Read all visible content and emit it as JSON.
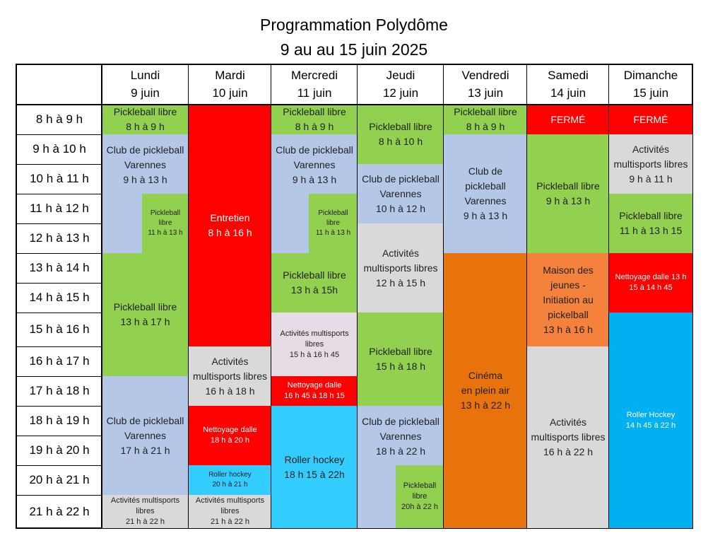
{
  "title": {
    "line1": "Programmation Polydôme",
    "line2": "9 au au 15 juin 2025"
  },
  "days": [
    {
      "name": "Lundi",
      "date": "9 juin"
    },
    {
      "name": "Mardi",
      "date": "10 juin"
    },
    {
      "name": "Mercredi",
      "date": "11 juin"
    },
    {
      "name": "Jeudi",
      "date": "12 juin"
    },
    {
      "name": "Vendredi",
      "date": "13 juin"
    },
    {
      "name": "Samedi",
      "date": "14 juin"
    },
    {
      "name": "Dimanche",
      "date": "15 juin"
    }
  ],
  "time_slots": [
    "8 h à 9 h",
    "9 h à 10 h",
    "10 h à 11 h",
    "11 h à 12 h",
    "12 h à 13 h",
    "13 h à 14 h",
    "14 h à 15 h",
    "15 h à 16 h",
    "16 h à 17 h",
    "17 h à 18 h",
    "18 h à 19 h",
    "19 h à 20 h",
    "20 h à 21 h",
    "21 h à 22 h"
  ],
  "colors": {
    "green": "#92d050",
    "blue": "#b4c7e7",
    "red": "#ff0000",
    "gray": "#d9d9d9",
    "lavender": "#e6dce6",
    "cyan": "#33ccff",
    "roller": "#00b0f0",
    "orange": "#e8730c",
    "salmon": "#f4823c"
  },
  "schedule": {
    "lundi": [
      {
        "lines": [
          "Pickleball libre",
          "8 h à 9 h"
        ]
      },
      {
        "lines": [
          "Club de pickleball",
          "Varennes",
          "9 h à 13 h"
        ]
      },
      {
        "lines": [
          "Pickleball",
          "libre",
          "11 h à 13 h"
        ]
      },
      {
        "lines": [
          "Pickleball libre",
          "13 h à 17 h"
        ]
      },
      {
        "lines": [
          "Club de pickleball",
          "Varennes",
          "17 h à 21 h"
        ]
      },
      {
        "lines": [
          "Activités multisports",
          "libres",
          "21 h à 22 h"
        ]
      }
    ],
    "mardi": [
      {
        "lines": [
          "Entretien",
          "8 h à 16 h"
        ]
      },
      {
        "lines": [
          "Activités",
          "multisports libres",
          "16 h à 18 h"
        ]
      },
      {
        "lines": [
          "Nettoyage dalle",
          "18 h à 20 h"
        ]
      },
      {
        "lines": [
          "Roller hockey",
          "20 h à 21  h"
        ]
      },
      {
        "lines": [
          "Activités multisports",
          "libres",
          "21 h à 22 h"
        ]
      }
    ],
    "mercredi": [
      {
        "lines": [
          "Pickleball libre",
          "8 h à 9 h"
        ]
      },
      {
        "lines": [
          "Club de pickleball",
          "Varennes",
          "9 h à 13 h"
        ]
      },
      {
        "lines": [
          "Pickleball",
          "libre",
          "11 h à 13 h"
        ]
      },
      {
        "lines": [
          "Pickleball libre",
          "13 h à 15h"
        ]
      },
      {
        "lines": [
          "Activités multisports",
          "libres",
          "15 h à 16 h 45"
        ]
      },
      {
        "lines": [
          "Nettoyage dalle",
          "16 h 45 à 18 h 15"
        ]
      },
      {
        "lines": [
          "Roller hockey",
          "18 h 15 à 22h"
        ]
      }
    ],
    "jeudi": [
      {
        "lines": [
          "Pickleball libre",
          "8 h à 10 h"
        ]
      },
      {
        "lines": [
          "Club de pickleball",
          "Varennes",
          "10 h à 12 h"
        ]
      },
      {
        "lines": [
          "Activités",
          "multisports libres",
          "12 h à 15 h"
        ]
      },
      {
        "lines": [
          "Pickleball libre",
          "15 h à 18 h"
        ]
      },
      {
        "lines": [
          "Club de pickleball",
          "Varennes",
          "18 h à 22 h"
        ]
      },
      {
        "lines": [
          "Pickleball",
          "libre",
          "20h à 22 h"
        ]
      }
    ],
    "vendredi": [
      {
        "lines": [
          "Pickleball libre",
          "8 h à 9 h"
        ]
      },
      {
        "lines": [
          "Club de",
          "pickleball",
          "Varennes",
          "9 h à 13 h"
        ]
      },
      {
        "lines": [
          "Cinéma",
          "en plein air",
          "13 h à 22 h"
        ]
      }
    ],
    "samedi": [
      {
        "lines": [
          "FERMÉ"
        ]
      },
      {
        "lines": [
          "Pickleball libre",
          "9 h à 13 h"
        ]
      },
      {
        "lines": [
          "Maison des",
          "jeunes -",
          "Initiation au",
          "pickelball",
          "13 h à 16 h"
        ]
      },
      {
        "lines": [
          "Activités",
          "multisports libres",
          "16 h à 22 h"
        ]
      }
    ],
    "dimanche": [
      {
        "lines": [
          "FERMÉ"
        ]
      },
      {
        "lines": [
          "Activités",
          "multisports libres",
          "9 h à 11 h"
        ]
      },
      {
        "lines": [
          "Pickleball libre",
          "11 h à 13 h 15"
        ]
      },
      {
        "lines": [
          "Nettoyage dalle 13 h",
          "15 à 14 h 45"
        ]
      },
      {
        "lines": [
          "Roller Hockey",
          "14 h 45 à 22 h"
        ]
      }
    ]
  }
}
